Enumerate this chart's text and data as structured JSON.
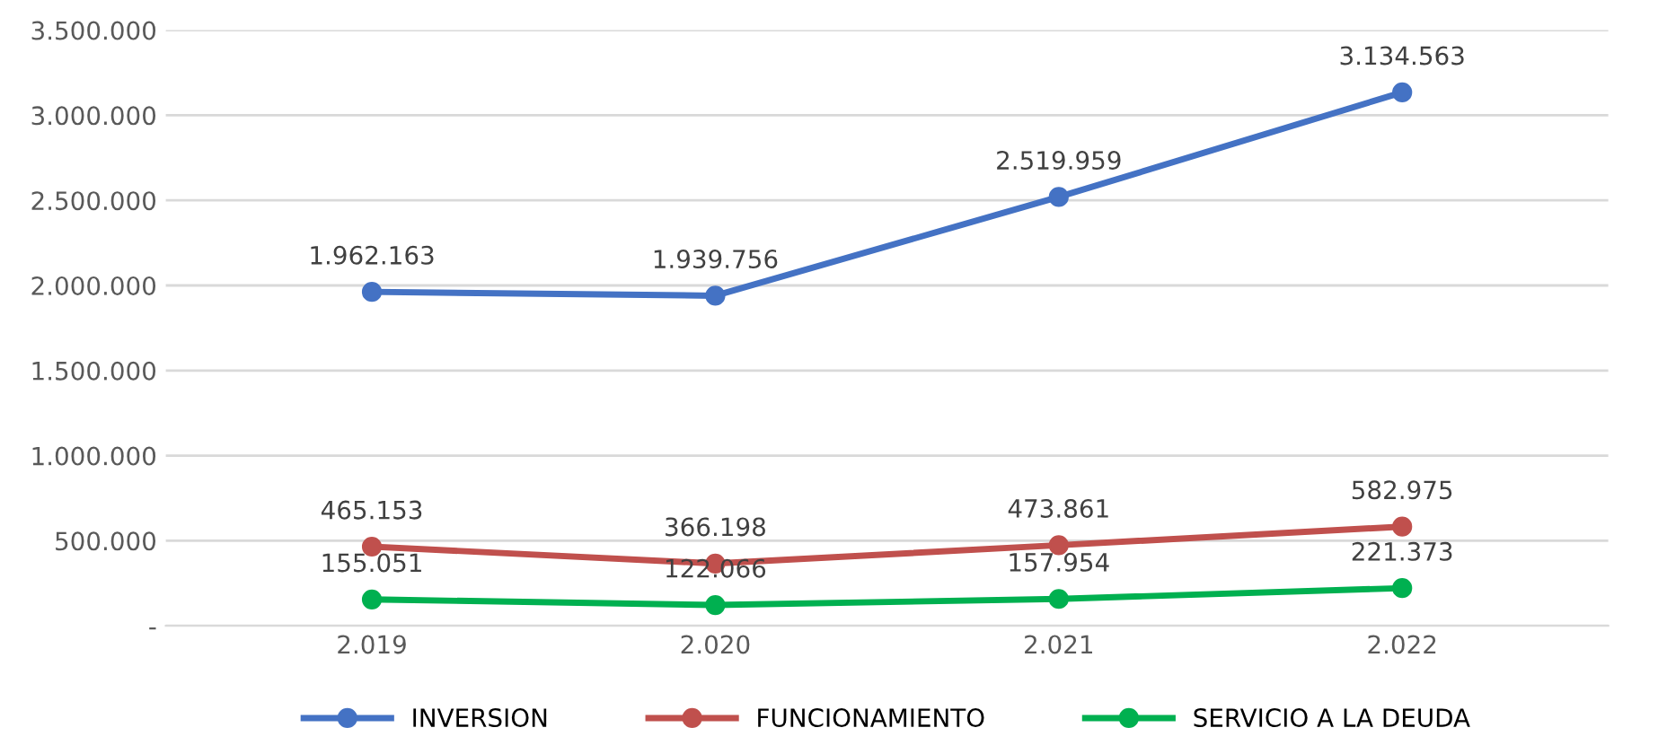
{
  "chart_data": {
    "type": "line",
    "categories": [
      "2.019",
      "2.020",
      "2.021",
      "2.022"
    ],
    "series": [
      {
        "name": "INVERSION",
        "color": "#4472c4",
        "values": [
          1962163,
          1939756,
          2519959,
          3134563
        ],
        "value_labels": [
          "1.962.163",
          "1.939.756",
          "2.519.959",
          "3.134.563"
        ]
      },
      {
        "name": "FUNCIONAMIENTO",
        "color": "#c0504d",
        "values": [
          465153,
          366198,
          473861,
          582975
        ],
        "value_labels": [
          "465.153",
          "366.198",
          "473.861",
          "582.975"
        ]
      },
      {
        "name": "SERVICIO A LA DEUDA",
        "color": "#00b050",
        "values": [
          155051,
          122066,
          157954,
          221373
        ],
        "value_labels": [
          "155.051",
          "122.066",
          "157.954",
          "221.373"
        ]
      }
    ],
    "ylim": [
      0,
      3500000
    ],
    "yticks": [
      {
        "value": 0,
        "label": "-"
      },
      {
        "value": 500000,
        "label": "500.000"
      },
      {
        "value": 1000000,
        "label": "1.000.000"
      },
      {
        "value": 1500000,
        "label": "1.500.000"
      },
      {
        "value": 2000000,
        "label": "2.000.000"
      },
      {
        "value": 2500000,
        "label": "2.500.000"
      },
      {
        "value": 3000000,
        "label": "3.000.000"
      },
      {
        "value": 3500000,
        "label": "3.500.000"
      }
    ],
    "grid": "y",
    "legend": "bottom",
    "marker": "circle",
    "line_style": "solid"
  }
}
